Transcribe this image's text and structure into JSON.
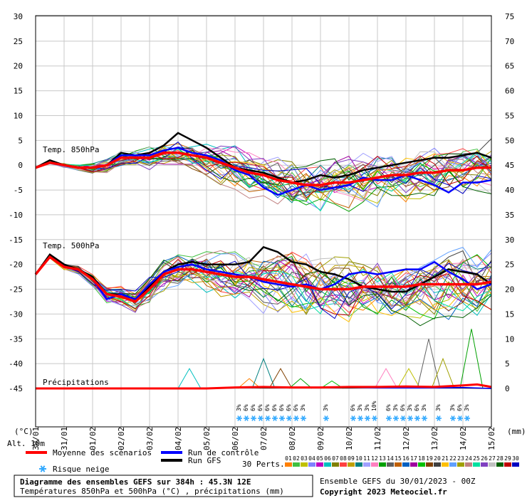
{
  "chart_data": {
    "type": "line",
    "title": "Diagramme des ensembles GEFS sur 384h : 45.3N 12E",
    "subtitle": "Températures 850hPa et 500hPa (°C) , précipitations (mm)",
    "run_label": "Ensemble GEFS du 30/01/2023 - 00Z",
    "copyright": "Copyright 2023 Meteociel.fr",
    "left_axis_unit": "(°C)",
    "right_axis_unit": "(mm)",
    "altitude_label": "Alt. 10m",
    "left_ticks": [
      30,
      25,
      20,
      15,
      10,
      5,
      0,
      -5,
      -10,
      -15,
      -20,
      -25,
      -30,
      -35,
      -40,
      -45
    ],
    "right_ticks": [
      75,
      70,
      65,
      60,
      55,
      50,
      45,
      40,
      35,
      30,
      25,
      20,
      15,
      10,
      5,
      0
    ],
    "dates": [
      "30/01",
      "31/01",
      "01/02",
      "02/02",
      "03/02",
      "04/02",
      "05/02",
      "06/02",
      "07/02",
      "08/02",
      "09/02",
      "10/02",
      "11/02",
      "12/02",
      "13/02",
      "14/02",
      "15/02"
    ],
    "panel_labels": {
      "t850": "Temp. 850hPa",
      "t500": "Temp. 500hPa",
      "precip": "Précipitations"
    },
    "legend": {
      "mean": "Moyenne des scénarios",
      "control": "Run de contrôle",
      "gfs": "Run GFS",
      "snow": "Risque neige",
      "perts": "30 Perts."
    },
    "pert_labels": [
      "01",
      "02",
      "03",
      "04",
      "05",
      "06",
      "07",
      "08",
      "09",
      "10",
      "11",
      "12",
      "13",
      "14",
      "15",
      "16",
      "17",
      "18",
      "19",
      "20",
      "21",
      "22",
      "23",
      "24",
      "25",
      "26",
      "27",
      "28",
      "29",
      "30"
    ],
    "pert_colors": [
      "#ff8000",
      "#40c040",
      "#c0c000",
      "#8080ff",
      "#c000c0",
      "#00c0c0",
      "#808000",
      "#ff4040",
      "#c0a000",
      "#008080",
      "#a0a0ff",
      "#ff80c0",
      "#00a000",
      "#606060",
      "#c06000",
      "#0060c0",
      "#a000a0",
      "#00c000",
      "#804000",
      "#404040",
      "#ffc000",
      "#60a0ff",
      "#a0a000",
      "#c08080",
      "#00e0a0",
      "#8040c0",
      "#c0c0c0",
      "#006000",
      "#c00000",
      "#0000c0"
    ],
    "snow_markers": [
      {
        "day": 7.15,
        "pct": "3%"
      },
      {
        "day": 7.4,
        "pct": "6%"
      },
      {
        "day": 7.65,
        "pct": "6%"
      },
      {
        "day": 7.9,
        "pct": "6%"
      },
      {
        "day": 8.15,
        "pct": "6%"
      },
      {
        "day": 8.4,
        "pct": "6%"
      },
      {
        "day": 8.65,
        "pct": "6%"
      },
      {
        "day": 8.9,
        "pct": "6%"
      },
      {
        "day": 9.15,
        "pct": "6%"
      },
      {
        "day": 9.4,
        "pct": "3%"
      },
      {
        "day": 10.2,
        "pct": "3%"
      },
      {
        "day": 11.15,
        "pct": "6%"
      },
      {
        "day": 11.4,
        "pct": "3%"
      },
      {
        "day": 11.65,
        "pct": "3%"
      },
      {
        "day": 11.9,
        "pct": "10%"
      },
      {
        "day": 12.4,
        "pct": "6%"
      },
      {
        "day": 12.65,
        "pct": "3%"
      },
      {
        "day": 12.9,
        "pct": "6%"
      },
      {
        "day": 13.15,
        "pct": "3%"
      },
      {
        "day": 13.4,
        "pct": "6%"
      },
      {
        "day": 13.65,
        "pct": "3%"
      },
      {
        "day": 14.15,
        "pct": "3%"
      },
      {
        "day": 14.65,
        "pct": "3%"
      },
      {
        "day": 14.9,
        "pct": "6%"
      },
      {
        "day": 15.15,
        "pct": "3%"
      }
    ],
    "mean_t850": [
      [
        0,
        -0.5
      ],
      [
        0.5,
        0.5
      ],
      [
        1,
        0
      ],
      [
        1.5,
        -0.5
      ],
      [
        2,
        -0.5
      ],
      [
        2.5,
        0
      ],
      [
        3,
        1.5
      ],
      [
        3.5,
        1.5
      ],
      [
        4,
        1.5
      ],
      [
        4.5,
        2.5
      ],
      [
        5,
        2.5
      ],
      [
        5.5,
        2
      ],
      [
        6,
        1.5
      ],
      [
        6.5,
        0.5
      ],
      [
        7,
        -0.5
      ],
      [
        7.5,
        -1.5
      ],
      [
        8,
        -2
      ],
      [
        8.5,
        -3
      ],
      [
        9,
        -3.5
      ],
      [
        9.5,
        -4
      ],
      [
        10,
        -4
      ],
      [
        10.5,
        -3.5
      ],
      [
        11,
        -3.5
      ],
      [
        11.5,
        -3
      ],
      [
        12,
        -2.5
      ],
      [
        12.5,
        -2
      ],
      [
        13,
        -2
      ],
      [
        13.5,
        -1.5
      ],
      [
        14,
        -1.5
      ],
      [
        14.5,
        -1
      ],
      [
        15,
        -1
      ],
      [
        15.5,
        -0.5
      ],
      [
        16,
        -0.5
      ]
    ],
    "control_t850": [
      [
        0,
        -0.5
      ],
      [
        0.5,
        0.5
      ],
      [
        1,
        0
      ],
      [
        1.5,
        -0.5
      ],
      [
        2,
        -0.5
      ],
      [
        2.5,
        0
      ],
      [
        3,
        2
      ],
      [
        3.5,
        2
      ],
      [
        4,
        2
      ],
      [
        4.5,
        3
      ],
      [
        5,
        3.5
      ],
      [
        5.5,
        2.5
      ],
      [
        6,
        2
      ],
      [
        6.5,
        1
      ],
      [
        7,
        -1
      ],
      [
        7.5,
        -2
      ],
      [
        8,
        -4.5
      ],
      [
        8.5,
        -6
      ],
      [
        9,
        -5
      ],
      [
        9.5,
        -4
      ],
      [
        10,
        -5
      ],
      [
        10.5,
        -4.5
      ],
      [
        11,
        -4
      ],
      [
        11.5,
        -2.5
      ],
      [
        12,
        -3
      ],
      [
        12.5,
        -3
      ],
      [
        13,
        -2
      ],
      [
        13.5,
        -3
      ],
      [
        14,
        -4
      ],
      [
        14.5,
        -5.5
      ],
      [
        15,
        -3.5
      ],
      [
        15.5,
        -3.5
      ],
      [
        16,
        -3
      ]
    ],
    "gfs_t850": [
      [
        0,
        -0.5
      ],
      [
        0.5,
        1
      ],
      [
        1,
        0
      ],
      [
        1.5,
        -0.5
      ],
      [
        2,
        -0.5
      ],
      [
        2.5,
        0
      ],
      [
        3,
        2.5
      ],
      [
        3.5,
        2
      ],
      [
        4,
        2.5
      ],
      [
        4.5,
        4
      ],
      [
        5,
        6.5
      ],
      [
        5.5,
        5
      ],
      [
        6,
        3.5
      ],
      [
        6.5,
        1.5
      ],
      [
        7,
        -0.5
      ],
      [
        7.5,
        -1
      ],
      [
        8,
        -1.5
      ],
      [
        8.5,
        -2.5
      ],
      [
        9,
        -3.5
      ],
      [
        9.5,
        -3
      ],
      [
        10,
        -2
      ],
      [
        10.5,
        -2.5
      ],
      [
        11,
        -2
      ],
      [
        11.5,
        -1
      ],
      [
        12,
        -0.5
      ],
      [
        12.5,
        0
      ],
      [
        13,
        0.5
      ],
      [
        13.5,
        1
      ],
      [
        14,
        1.5
      ],
      [
        14.5,
        1.5
      ],
      [
        15,
        2
      ],
      [
        15.5,
        2.5
      ],
      [
        16,
        1.5
      ]
    ],
    "mean_t500": [
      [
        0,
        -22
      ],
      [
        0.5,
        -18.5
      ],
      [
        1,
        -20.5
      ],
      [
        1.5,
        -21
      ],
      [
        2,
        -23
      ],
      [
        2.5,
        -26
      ],
      [
        3,
        -26.5
      ],
      [
        3.5,
        -27.5
      ],
      [
        4,
        -25
      ],
      [
        4.5,
        -22
      ],
      [
        5,
        -21
      ],
      [
        5.5,
        -21
      ],
      [
        6,
        -21.5
      ],
      [
        6.5,
        -22
      ],
      [
        7,
        -22.5
      ],
      [
        7.5,
        -22.5
      ],
      [
        8,
        -23
      ],
      [
        8.5,
        -23.5
      ],
      [
        9,
        -24
      ],
      [
        9.5,
        -24.5
      ],
      [
        10,
        -25
      ],
      [
        10.5,
        -25
      ],
      [
        11,
        -25
      ],
      [
        11.5,
        -24.5
      ],
      [
        12,
        -24.5
      ],
      [
        12.5,
        -24.5
      ],
      [
        13,
        -24.5
      ],
      [
        13.5,
        -24
      ],
      [
        14,
        -24
      ],
      [
        14.5,
        -24
      ],
      [
        15,
        -24
      ],
      [
        15.5,
        -24
      ],
      [
        16,
        -23.5
      ]
    ],
    "control_t500": [
      [
        0,
        -22
      ],
      [
        0.5,
        -18.5
      ],
      [
        1,
        -20.5
      ],
      [
        1.5,
        -21
      ],
      [
        2,
        -23
      ],
      [
        2.5,
        -27
      ],
      [
        3,
        -26
      ],
      [
        3.5,
        -27
      ],
      [
        4,
        -24
      ],
      [
        4.5,
        -21.5
      ],
      [
        5,
        -20.5
      ],
      [
        5.5,
        -20
      ],
      [
        6,
        -21
      ],
      [
        6.5,
        -21.5
      ],
      [
        7,
        -22
      ],
      [
        7.5,
        -22.5
      ],
      [
        8,
        -23.5
      ],
      [
        8.5,
        -24
      ],
      [
        9,
        -24.5
      ],
      [
        9.5,
        -24
      ],
      [
        10,
        -25
      ],
      [
        10.5,
        -24
      ],
      [
        11,
        -22
      ],
      [
        11.5,
        -21.5
      ],
      [
        12,
        -22
      ],
      [
        12.5,
        -21.5
      ],
      [
        13,
        -21
      ],
      [
        13.5,
        -21
      ],
      [
        14,
        -19.5
      ],
      [
        14.5,
        -21.5
      ],
      [
        15,
        -23
      ],
      [
        15.5,
        -25
      ],
      [
        16,
        -24
      ]
    ],
    "gfs_t500": [
      [
        0,
        -22
      ],
      [
        0.5,
        -18
      ],
      [
        1,
        -20
      ],
      [
        1.5,
        -21
      ],
      [
        2,
        -22.5
      ],
      [
        2.5,
        -26
      ],
      [
        3,
        -26
      ],
      [
        3.5,
        -27
      ],
      [
        4,
        -24.5
      ],
      [
        4.5,
        -21.5
      ],
      [
        5,
        -20
      ],
      [
        5.5,
        -19.5
      ],
      [
        6,
        -20
      ],
      [
        6.5,
        -20
      ],
      [
        7,
        -20
      ],
      [
        7.5,
        -19.5
      ],
      [
        8,
        -16.5
      ],
      [
        8.5,
        -17.5
      ],
      [
        9,
        -19.5
      ],
      [
        9.5,
        -20
      ],
      [
        10,
        -21.5
      ],
      [
        10.5,
        -22
      ],
      [
        11,
        -23
      ],
      [
        11.5,
        -24.5
      ],
      [
        12,
        -25
      ],
      [
        12.5,
        -25.5
      ],
      [
        13,
        -25.5
      ],
      [
        13.5,
        -24
      ],
      [
        14,
        -22.5
      ],
      [
        14.5,
        -21
      ],
      [
        15,
        -21.5
      ],
      [
        15.5,
        -22
      ],
      [
        16,
        -24
      ]
    ],
    "mean_precip": [
      [
        0,
        0
      ],
      [
        2,
        0
      ],
      [
        4,
        0
      ],
      [
        6,
        0
      ],
      [
        7,
        0.2
      ],
      [
        8,
        0.3
      ],
      [
        9,
        0.2
      ],
      [
        10,
        0.2
      ],
      [
        11,
        0.3
      ],
      [
        12,
        0.3
      ],
      [
        13,
        0.4
      ],
      [
        14,
        0.3
      ],
      [
        15,
        0.6
      ],
      [
        15.5,
        0.8
      ],
      [
        16,
        0.3
      ]
    ],
    "control_precip": [
      [
        0,
        0
      ],
      [
        6,
        0
      ],
      [
        7,
        0.1
      ],
      [
        8,
        0.2
      ],
      [
        9,
        0.1
      ],
      [
        10,
        0.1
      ],
      [
        11,
        0.2
      ],
      [
        12,
        0.1
      ],
      [
        13,
        0.1
      ],
      [
        14,
        0.1
      ],
      [
        15,
        0.2
      ],
      [
        16,
        0
      ]
    ],
    "gfs_precip": [
      [
        0,
        0
      ],
      [
        6,
        0
      ],
      [
        7,
        0.2
      ],
      [
        8,
        0.1
      ],
      [
        9,
        0.1
      ],
      [
        10,
        0.1
      ],
      [
        11,
        0.1
      ],
      [
        12,
        0.2
      ],
      [
        13,
        0.1
      ],
      [
        14,
        0.1
      ],
      [
        15,
        0.1
      ],
      [
        16,
        0
      ]
    ],
    "pert_precip_spikes": [
      {
        "pert": 6,
        "day": 5.4,
        "value": 4
      },
      {
        "pert": 1,
        "day": 7.5,
        "value": 2
      },
      {
        "pert": 10,
        "day": 8,
        "value": 6
      },
      {
        "pert": 19,
        "day": 8.6,
        "value": 4
      },
      {
        "pert": 13,
        "day": 9.3,
        "value": 2
      },
      {
        "pert": 18,
        "day": 10.4,
        "value": 1.5
      },
      {
        "pert": 12,
        "day": 12.3,
        "value": 4
      },
      {
        "pert": 3,
        "day": 13.1,
        "value": 4
      },
      {
        "pert": 14,
        "day": 13.8,
        "value": 10
      },
      {
        "pert": 23,
        "day": 14.3,
        "value": 6
      },
      {
        "pert": 13,
        "day": 15.3,
        "value": 12
      }
    ]
  }
}
